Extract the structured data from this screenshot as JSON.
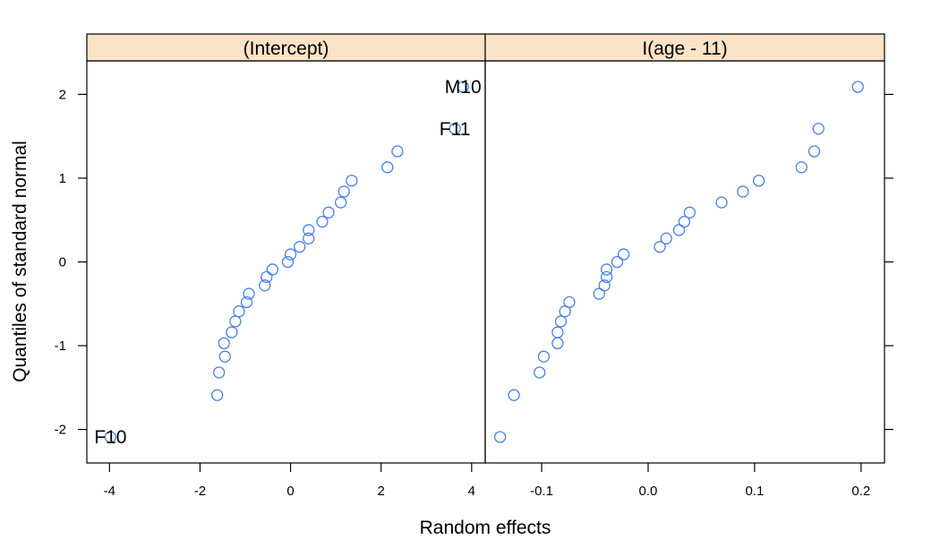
{
  "chart_data": {
    "type": "scatter",
    "xlabel": "Random effects",
    "ylabel": "Quantiles of standard normal",
    "ylim": [
      -2.4,
      2.4
    ],
    "y_ticks": [
      -2,
      -1,
      0,
      1,
      2
    ],
    "y_tick_labels": [
      "-2",
      "-1",
      "0",
      "1",
      "2"
    ],
    "grid": false,
    "point_color": "#4a7ee8",
    "strip_color": "#fae3c7",
    "panels": [
      {
        "strip": "(Intercept)",
        "xlim": [
          -4.5,
          4.3
        ],
        "x_ticks": [
          -4,
          -2,
          0,
          2,
          4
        ],
        "x_tick_labels": [
          "-4",
          "-2",
          "0",
          "2",
          "4"
        ],
        "points": [
          {
            "x": -3.98,
            "y": -2.09,
            "label": "F10"
          },
          {
            "x": -1.62,
            "y": -1.59
          },
          {
            "x": -1.58,
            "y": -1.32
          },
          {
            "x": -1.45,
            "y": -1.13
          },
          {
            "x": -1.47,
            "y": -0.97
          },
          {
            "x": -1.3,
            "y": -0.84
          },
          {
            "x": -1.22,
            "y": -0.71
          },
          {
            "x": -1.14,
            "y": -0.59
          },
          {
            "x": -0.97,
            "y": -0.48
          },
          {
            "x": -0.92,
            "y": -0.38
          },
          {
            "x": -0.57,
            "y": -0.28
          },
          {
            "x": -0.53,
            "y": -0.18
          },
          {
            "x": -0.4,
            "y": -0.09
          },
          {
            "x": -0.06,
            "y": 0.0
          },
          {
            "x": 0.0,
            "y": 0.09
          },
          {
            "x": 0.2,
            "y": 0.18
          },
          {
            "x": 0.4,
            "y": 0.28
          },
          {
            "x": 0.4,
            "y": 0.38
          },
          {
            "x": 0.7,
            "y": 0.48
          },
          {
            "x": 0.84,
            "y": 0.59
          },
          {
            "x": 1.11,
            "y": 0.71
          },
          {
            "x": 1.18,
            "y": 0.84
          },
          {
            "x": 1.35,
            "y": 0.97
          },
          {
            "x": 2.14,
            "y": 1.13
          },
          {
            "x": 2.36,
            "y": 1.32
          },
          {
            "x": 3.63,
            "y": 1.59,
            "label": "F11"
          },
          {
            "x": 3.81,
            "y": 2.09,
            "label": "M10"
          }
        ]
      },
      {
        "strip": "I(age - 11)",
        "xlim": [
          -0.153,
          0.222
        ],
        "x_ticks": [
          -0.1,
          0.0,
          0.1,
          0.2
        ],
        "x_tick_labels": [
          "-0.1",
          "0.0",
          "0.1",
          "0.2"
        ],
        "points": [
          {
            "x": -0.139,
            "y": -2.09
          },
          {
            "x": -0.126,
            "y": -1.59
          },
          {
            "x": -0.102,
            "y": -1.32
          },
          {
            "x": -0.098,
            "y": -1.13
          },
          {
            "x": -0.085,
            "y": -0.97
          },
          {
            "x": -0.085,
            "y": -0.84
          },
          {
            "x": -0.082,
            "y": -0.71
          },
          {
            "x": -0.078,
            "y": -0.59
          },
          {
            "x": -0.074,
            "y": -0.48
          },
          {
            "x": -0.046,
            "y": -0.38
          },
          {
            "x": -0.041,
            "y": -0.28
          },
          {
            "x": -0.039,
            "y": -0.18
          },
          {
            "x": -0.039,
            "y": -0.09
          },
          {
            "x": -0.029,
            "y": 0.0
          },
          {
            "x": -0.023,
            "y": 0.09
          },
          {
            "x": 0.011,
            "y": 0.18
          },
          {
            "x": 0.017,
            "y": 0.28
          },
          {
            "x": 0.029,
            "y": 0.38
          },
          {
            "x": 0.034,
            "y": 0.48
          },
          {
            "x": 0.039,
            "y": 0.59
          },
          {
            "x": 0.069,
            "y": 0.71
          },
          {
            "x": 0.089,
            "y": 0.84
          },
          {
            "x": 0.104,
            "y": 0.97
          },
          {
            "x": 0.144,
            "y": 1.13
          },
          {
            "x": 0.156,
            "y": 1.32
          },
          {
            "x": 0.16,
            "y": 1.59
          },
          {
            "x": 0.197,
            "y": 2.09
          }
        ]
      }
    ]
  }
}
